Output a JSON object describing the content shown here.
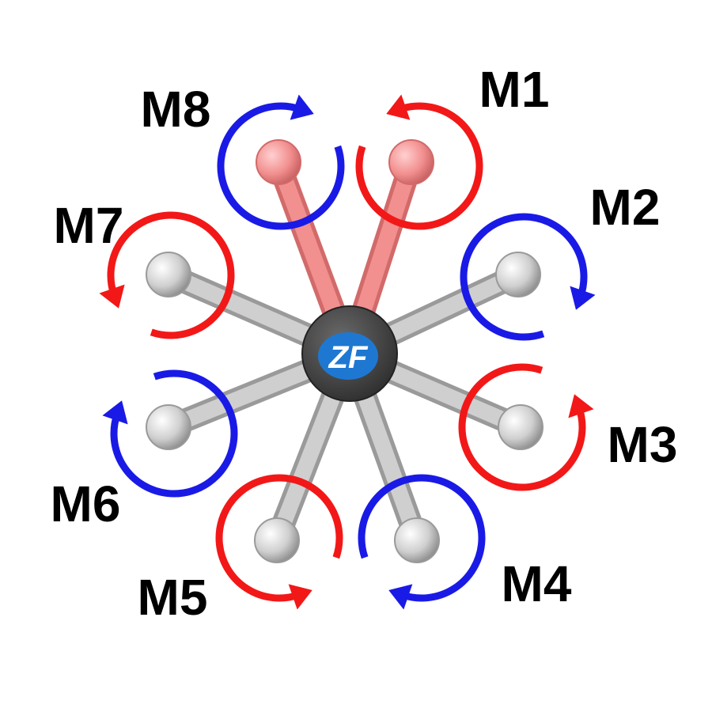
{
  "colors": {
    "cw_arrow": "#1a1ae6",
    "ccw_arrow": "#f21818",
    "front_arm": "#f28f8f",
    "front_arm_dark": "#d26a6a",
    "rear_arm": "#cfcfcf",
    "rear_arm_dark": "#9a9a9a",
    "hub": "#4a4a4a",
    "logo_bg": "#1e78d2",
    "logo_text": "#ffffff"
  },
  "logo": {
    "text": "ZF",
    "icon": "zf-logo-icon"
  },
  "motors": [
    {
      "id": "M1",
      "label": "M1",
      "front": true,
      "rotation": "ccw"
    },
    {
      "id": "M2",
      "label": "M2",
      "front": false,
      "rotation": "cw"
    },
    {
      "id": "M3",
      "label": "M3",
      "front": false,
      "rotation": "ccw"
    },
    {
      "id": "M4",
      "label": "M4",
      "front": false,
      "rotation": "cw"
    },
    {
      "id": "M5",
      "label": "M5",
      "front": false,
      "rotation": "ccw"
    },
    {
      "id": "M6",
      "label": "M6",
      "front": false,
      "rotation": "cw"
    },
    {
      "id": "M7",
      "label": "M7",
      "front": false,
      "rotation": "ccw"
    },
    {
      "id": "M8",
      "label": "M8",
      "front": true,
      "rotation": "cw"
    }
  ]
}
